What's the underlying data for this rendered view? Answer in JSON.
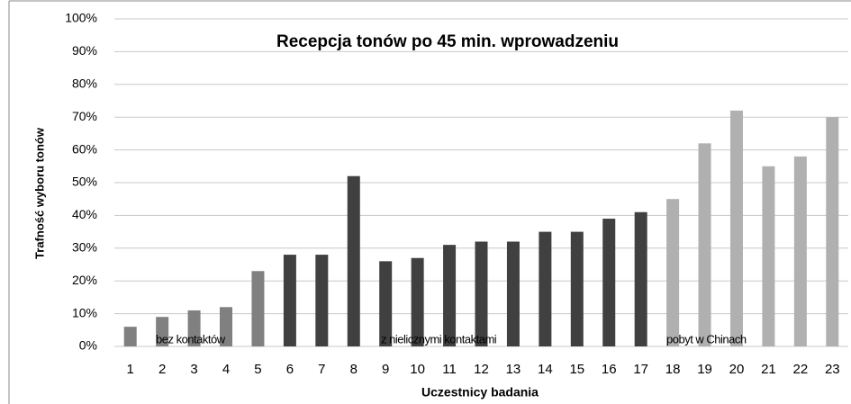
{
  "chart_data": {
    "type": "bar",
    "title": "Recepcja tonów po 45 min. wprowadzeniu",
    "x_label": "Uczestnicy badania",
    "y_label": "Trafność wyboru tonów",
    "categories": [
      "1",
      "2",
      "3",
      "4",
      "5",
      "6",
      "7",
      "8",
      "9",
      "10",
      "11",
      "12",
      "13",
      "14",
      "15",
      "16",
      "17",
      "18",
      "19",
      "20",
      "21",
      "22",
      "23"
    ],
    "values": [
      6,
      9,
      11,
      12,
      23,
      28,
      28,
      52,
      26,
      27,
      31,
      32,
      32,
      35,
      35,
      39,
      41,
      45,
      62,
      72,
      55,
      58,
      70
    ],
    "colors": [
      "#808080",
      "#808080",
      "#808080",
      "#808080",
      "#808080",
      "#404040",
      "#404040",
      "#404040",
      "#404040",
      "#404040",
      "#404040",
      "#404040",
      "#404040",
      "#404040",
      "#404040",
      "#404040",
      "#404040",
      "#b0b0b0",
      "#b0b0b0",
      "#b0b0b0",
      "#b0b0b0",
      "#b0b0b0",
      "#b0b0b0"
    ],
    "annotations": [
      "bez kontaktów",
      "z nielicznymi kontaktami",
      "pobyt w Chinach"
    ],
    "ylim": [
      0,
      100
    ],
    "yticks": [
      {
        "value": 0,
        "label": "0%"
      },
      {
        "value": 10,
        "label": "10%"
      },
      {
        "value": 20,
        "label": "20%"
      },
      {
        "value": 30,
        "label": "30%"
      },
      {
        "value": 40,
        "label": "40%"
      },
      {
        "value": 50,
        "label": "50%"
      },
      {
        "value": 60,
        "label": "60%"
      },
      {
        "value": 70,
        "label": "70%"
      },
      {
        "value": 80,
        "label": "80%"
      },
      {
        "value": 90,
        "label": "90%"
      },
      {
        "value": 100,
        "label": "100%"
      }
    ],
    "grid": true
  }
}
